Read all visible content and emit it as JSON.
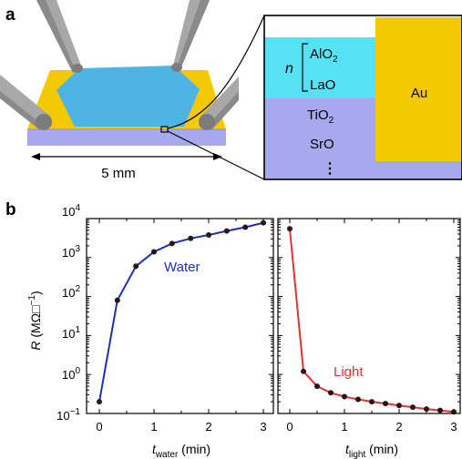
{
  "panel_a": {
    "label": "a",
    "scale_text": "5 mm",
    "layers": {
      "n": "n",
      "alo2_main": "AlO",
      "alo2_sub": "2",
      "lao": "LaO",
      "tio2_main": "TiO",
      "tio2_sub": "2",
      "sro": "SrO",
      "au": "Au",
      "ellipsis": "⋮"
    },
    "colors": {
      "laalo3": "#55e3f4",
      "srtio3": "#a7a9ef",
      "gold": "#f4c900",
      "probe": "#a8a8a8",
      "substrate_top": "#4fa9de"
    }
  },
  "panel_b": {
    "label": "b",
    "colors": {
      "water": "#1d2fc1",
      "light": "#e53232",
      "points": "#2a1515"
    }
  },
  "chart_data": {
    "type": "line",
    "yscale": "log",
    "ylim": [
      0.1,
      10000
    ],
    "ylabel": {
      "main": "R",
      "unit_text": "(MΩ□",
      "unit_sup": "−1",
      "close": ")"
    },
    "yticks": [
      {
        "base": "10",
        "exp": "−1"
      },
      {
        "base": "10",
        "exp": "0"
      },
      {
        "base": "10",
        "exp": "1"
      },
      {
        "base": "10",
        "exp": "2"
      },
      {
        "base": "10",
        "exp": "3"
      },
      {
        "base": "10",
        "exp": "4"
      }
    ],
    "panels": [
      {
        "xlabel": {
          "main": "t",
          "sub": "water",
          "unit": " (min)"
        },
        "xlim": [
          0,
          3
        ],
        "xticks": [
          "0",
          "1",
          "2",
          "3"
        ],
        "series": [
          {
            "name": "Water",
            "x": [
              0,
              0.33,
              0.67,
              1.0,
              1.33,
              1.67,
              2.0,
              2.33,
              2.67,
              3.0
            ],
            "y": [
              0.2,
              80,
              600,
              1400,
              2300,
              3100,
              3800,
              4800,
              6000,
              7800
            ]
          }
        ]
      },
      {
        "xlabel": {
          "main": "t",
          "sub": "light",
          "unit": " (min)"
        },
        "xlim": [
          0,
          3
        ],
        "xticks": [
          "0",
          "1",
          "2",
          "3"
        ],
        "series": [
          {
            "name": "Light",
            "x": [
              0,
              0.25,
              0.5,
              0.75,
              1.0,
              1.25,
              1.5,
              1.75,
              2.0,
              2.25,
              2.5,
              2.75,
              3.0
            ],
            "y": [
              5500,
              1.2,
              0.5,
              0.34,
              0.27,
              0.23,
              0.2,
              0.18,
              0.16,
              0.145,
              0.13,
              0.12,
              0.11
            ]
          }
        ]
      }
    ]
  }
}
